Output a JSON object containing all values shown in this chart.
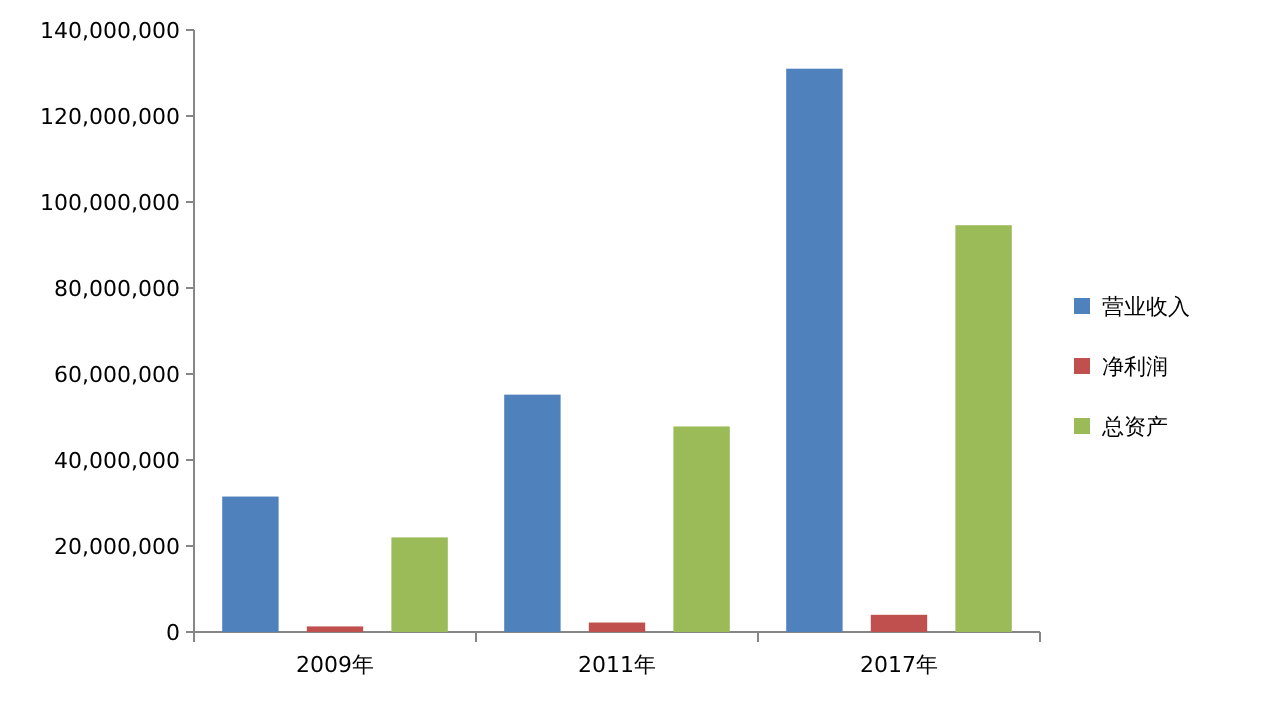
{
  "chart_data": {
    "type": "bar",
    "categories": [
      "2009年",
      "2011年",
      "2017年"
    ],
    "series": [
      {
        "name": "营业收入",
        "color": "#4f81bd",
        "values": [
          31500000,
          55200000,
          131000000
        ]
      },
      {
        "name": "净利润",
        "color": "#c0504d",
        "values": [
          1300000,
          2200000,
          4000000
        ]
      },
      {
        "name": "总资产",
        "color": "#9bbb59",
        "values": [
          22000000,
          47800000,
          94600000
        ]
      }
    ],
    "ylim": [
      0,
      140000000
    ],
    "yticks": [
      0,
      {
        "value": 20000000,
        "label": "20,000,000"
      },
      {
        "value": 40000000,
        "label": "40,000,000"
      },
      {
        "value": 60000000,
        "label": "60,000,000"
      },
      {
        "value": 80000000,
        "label": "80,000,000"
      },
      {
        "value": 100000000,
        "label": "100,000,000"
      },
      {
        "value": 120000000,
        "label": "120,000,000"
      },
      {
        "value": 140000000,
        "label": "140,000,000"
      }
    ],
    "legend": "right",
    "grid": false
  }
}
